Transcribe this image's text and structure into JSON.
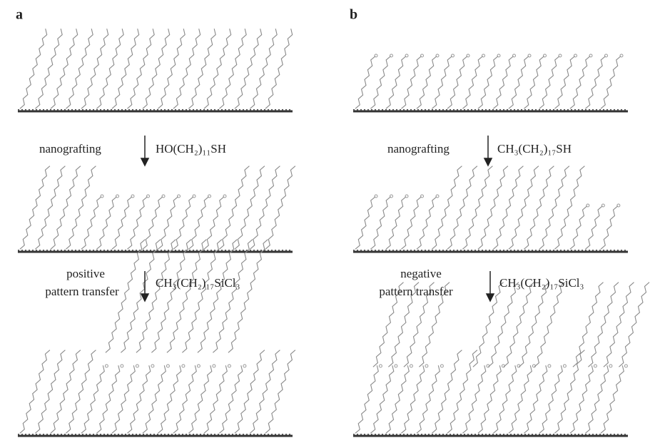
{
  "panels": [
    {
      "label": "a",
      "steps": [
        {
          "label_lines": [
            "nanografting"
          ],
          "reagent": "HO(CH₂)₁₁SH"
        },
        {
          "label_lines": [
            "positive",
            "pattern transfer"
          ],
          "reagent": "CH₃(CH₂)₁₇SiCl₃"
        }
      ]
    },
    {
      "label": "b",
      "steps": [
        {
          "label_lines": [
            "nanografting"
          ],
          "reagent": "CH₃(CH₂)₁₇SH"
        },
        {
          "label_lines": [
            "negative",
            "pattern transfer"
          ],
          "reagent": "CH₃(CH₂)₁₇SiCl₃"
        }
      ]
    }
  ]
}
